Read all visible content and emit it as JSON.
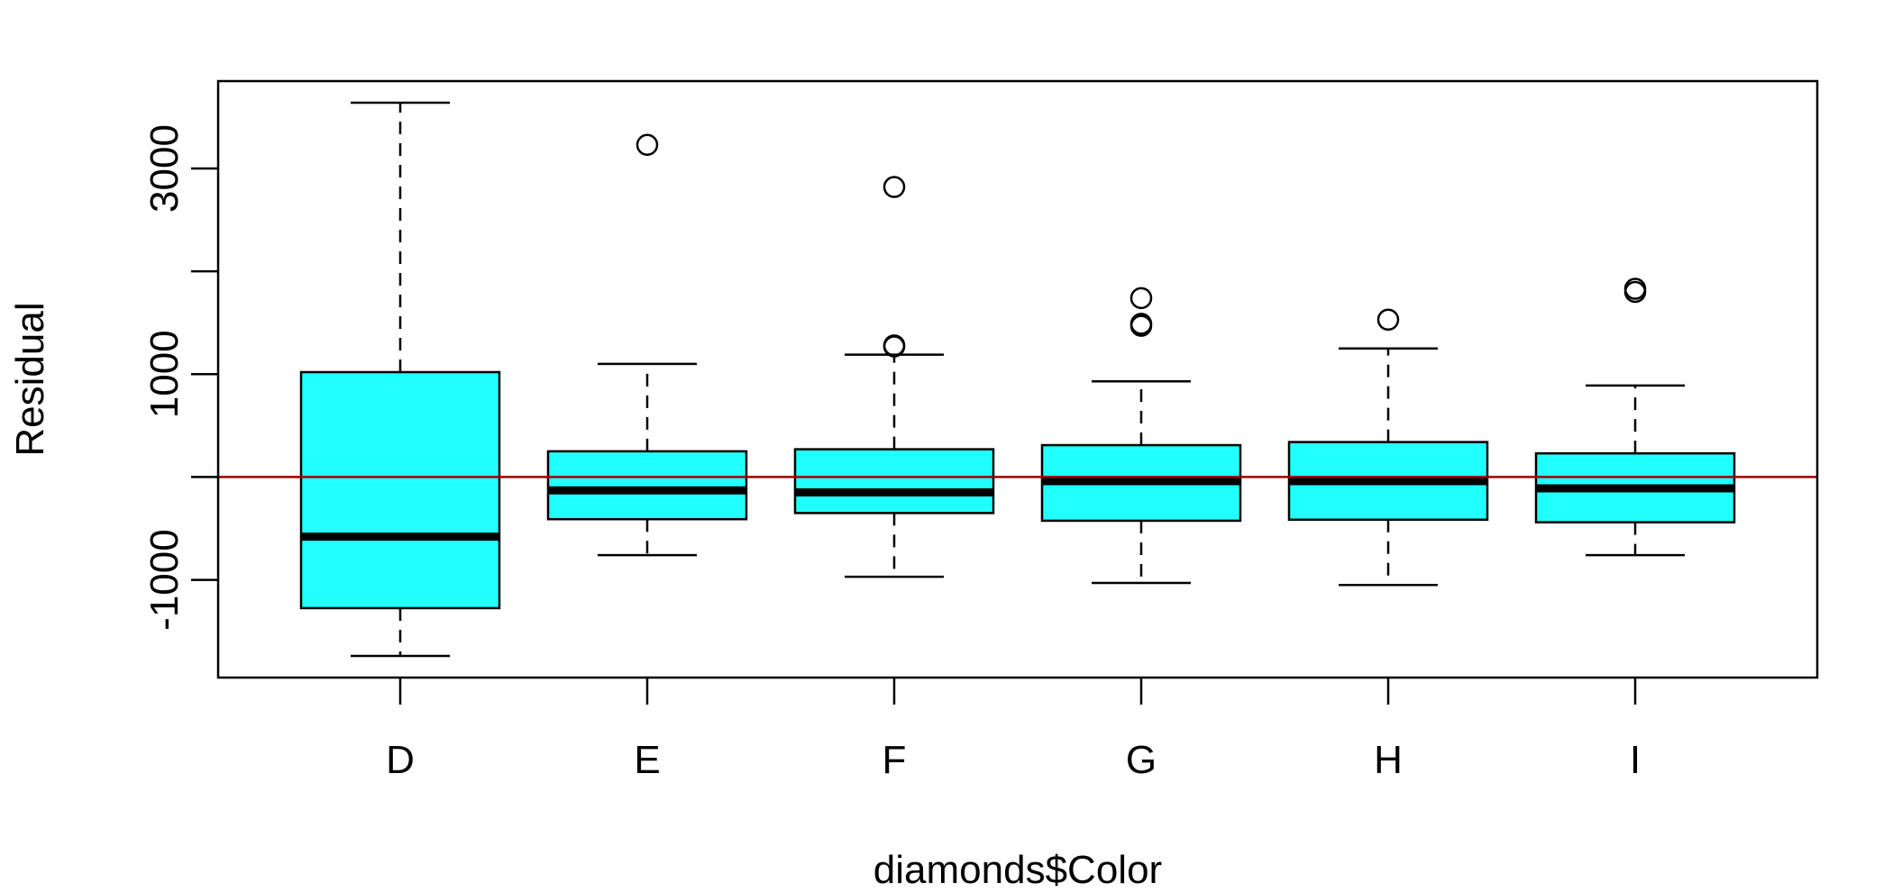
{
  "chart_data": {
    "type": "boxplot",
    "title": "",
    "xlabel": "diamonds$Color",
    "ylabel": "Residual",
    "categories": [
      "D",
      "E",
      "F",
      "G",
      "H",
      "I"
    ],
    "yticks": [
      -1000,
      1000,
      3000
    ],
    "yticks_minor": [
      -1000,
      0,
      1000,
      2000,
      3000
    ],
    "ylim": [
      -1950,
      3850
    ],
    "reference_line": {
      "y": 0,
      "color": "#a00000"
    },
    "box_color": "#22ffff",
    "boxes": [
      {
        "category": "D",
        "whisker_low": -1740,
        "q1": -1275,
        "median": -580,
        "q3": 1020,
        "whisker_high": 3640,
        "outliers": []
      },
      {
        "category": "E",
        "whisker_low": -760,
        "q1": -410,
        "median": -130,
        "q3": 250,
        "whisker_high": 1100,
        "outliers": [
          3230
        ]
      },
      {
        "category": "F",
        "whisker_low": -970,
        "q1": -350,
        "median": -150,
        "q3": 270,
        "whisker_high": 1190,
        "outliers": [
          1270,
          1280,
          2820
        ]
      },
      {
        "category": "G",
        "whisker_low": -1030,
        "q1": -425,
        "median": -40,
        "q3": 310,
        "whisker_high": 930,
        "outliers": [
          1470,
          1490,
          1740
        ]
      },
      {
        "category": "H",
        "whisker_low": -1050,
        "q1": -415,
        "median": -40,
        "q3": 340,
        "whisker_high": 1250,
        "outliers": [
          1530
        ]
      },
      {
        "category": "I",
        "whisker_low": -760,
        "q1": -440,
        "median": -110,
        "q3": 230,
        "whisker_high": 890,
        "outliers": [
          1800,
          1830
        ]
      }
    ]
  }
}
